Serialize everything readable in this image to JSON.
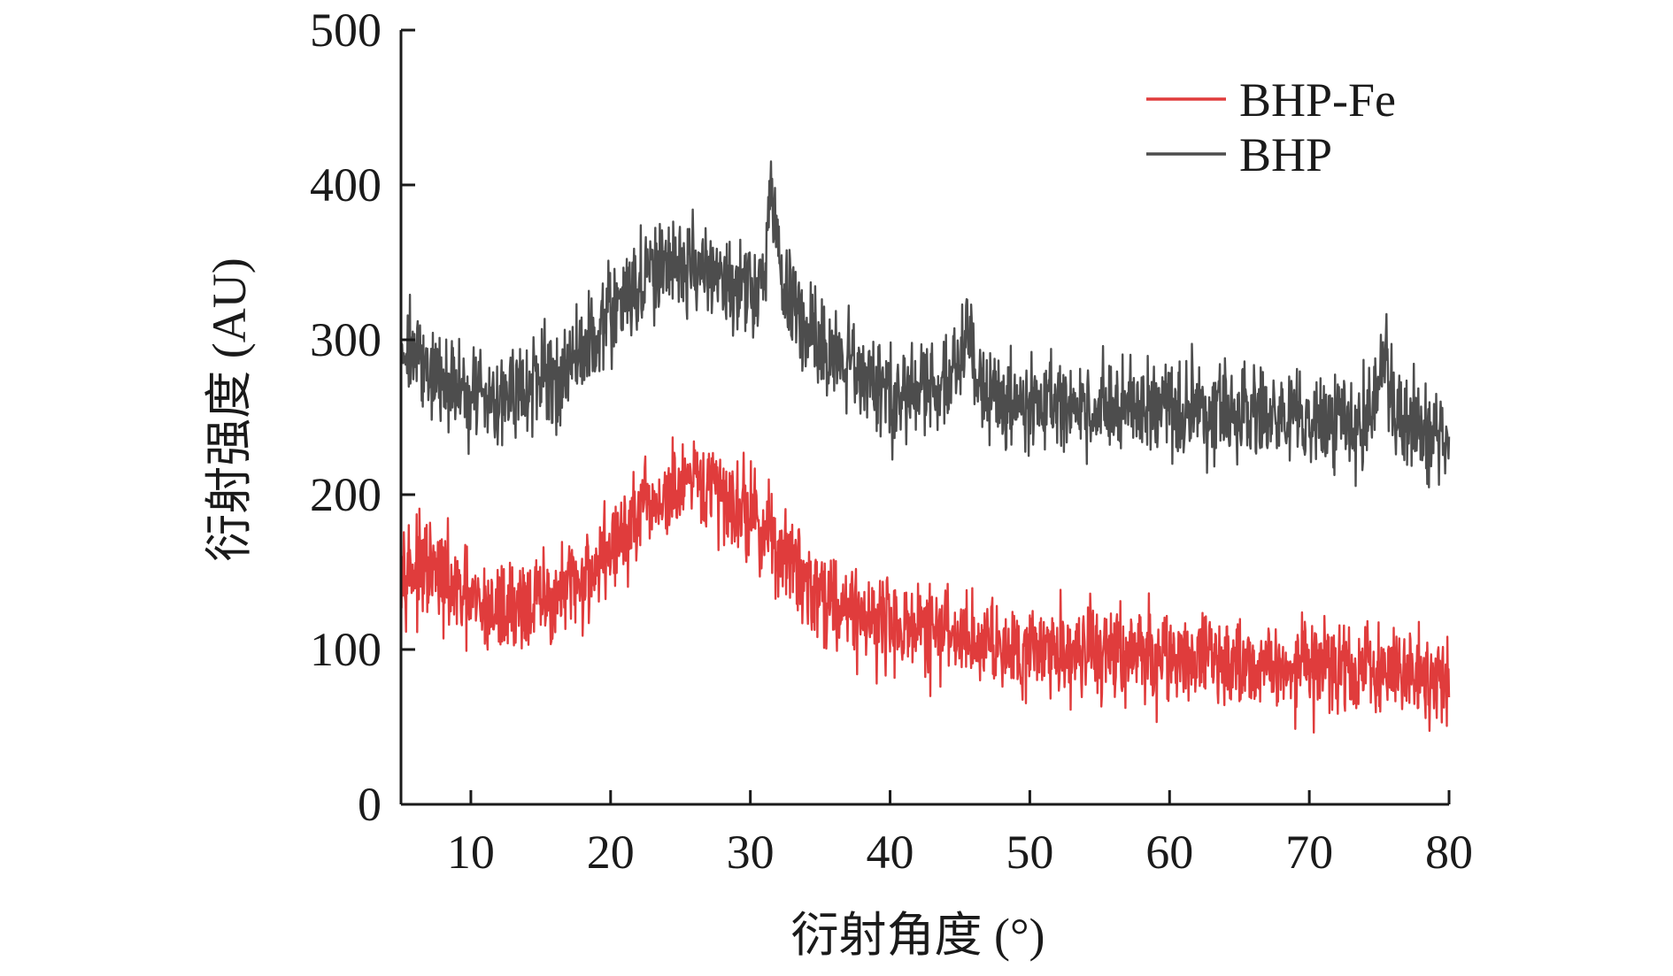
{
  "chart_data": {
    "type": "line",
    "title": "",
    "xlabel": "衍射角度 (°)",
    "ylabel": "衍射强度 (AU)",
    "xlim": [
      5,
      80
    ],
    "ylim": [
      0,
      500
    ],
    "x_ticks": [
      10,
      20,
      30,
      40,
      50,
      60,
      70,
      80
    ],
    "y_ticks": [
      0,
      100,
      200,
      300,
      400,
      500
    ],
    "legend_position": "top-right",
    "grid": false,
    "series": [
      {
        "name": "BHP-Fe",
        "color": "#e03c3c",
        "noise": 22,
        "x": [
          5,
          6,
          7,
          8,
          9,
          10,
          11,
          12,
          13,
          14,
          15,
          16,
          17,
          18,
          19,
          20,
          21,
          22,
          23,
          24,
          25,
          26,
          27,
          28,
          29,
          30,
          31,
          32,
          33,
          34,
          35,
          36,
          37,
          38,
          39,
          40,
          42,
          44,
          46,
          48,
          50,
          52,
          54,
          56,
          58,
          60,
          62,
          64,
          66,
          68,
          70,
          72,
          74,
          76,
          78,
          80
        ],
        "values": [
          160,
          150,
          150,
          145,
          135,
          130,
          125,
          125,
          128,
          130,
          130,
          133,
          138,
          145,
          155,
          165,
          175,
          185,
          192,
          198,
          202,
          205,
          205,
          200,
          195,
          188,
          178,
          165,
          155,
          145,
          138,
          132,
          127,
          123,
          120,
          117,
          113,
          110,
          107,
          104,
          102,
          100,
          99,
          98,
          96,
          95,
          94,
          93,
          91,
          90,
          89,
          88,
          86,
          85,
          84,
          82
        ]
      },
      {
        "name": "BHP",
        "color": "#4d4d4d",
        "noise": 22,
        "x": [
          5,
          6,
          7,
          8,
          9,
          10,
          11,
          12,
          13,
          14,
          15,
          16,
          17,
          18,
          19,
          20,
          21,
          22,
          23,
          24,
          25,
          26,
          27,
          28,
          29,
          30,
          31,
          31.5,
          32,
          33,
          34,
          35,
          36,
          37,
          38,
          39,
          40,
          42,
          44,
          45.5,
          46,
          47,
          48,
          50,
          52,
          54,
          56,
          58,
          60,
          62,
          64,
          66,
          68,
          70,
          72,
          74,
          75.5,
          76,
          78,
          80
        ],
        "values": [
          300,
          290,
          280,
          272,
          268,
          265,
          265,
          265,
          266,
          268,
          270,
          275,
          282,
          292,
          305,
          318,
          328,
          335,
          342,
          348,
          350,
          350,
          345,
          335,
          330,
          328,
          345,
          400,
          350,
          320,
          305,
          295,
          288,
          282,
          277,
          272,
          268,
          265,
          268,
          310,
          280,
          265,
          262,
          260,
          258,
          257,
          257,
          256,
          255,
          254,
          253,
          252,
          250,
          248,
          248,
          247,
          285,
          250,
          245,
          240
        ]
      }
    ]
  }
}
